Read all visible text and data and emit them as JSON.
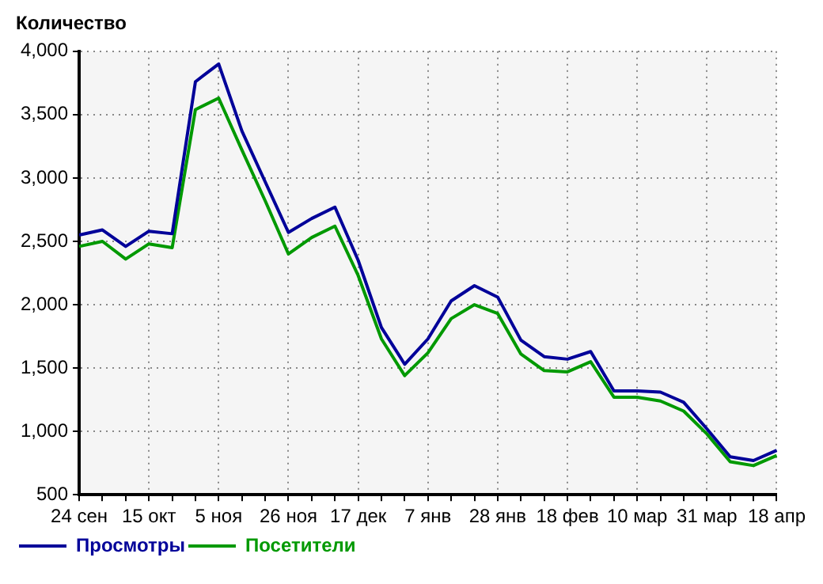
{
  "chart_data": {
    "type": "line",
    "ylabel": "Количество",
    "categories": [
      "24 сен",
      null,
      null,
      "15 окт",
      null,
      null,
      "5 ноя",
      null,
      null,
      "26 ноя",
      null,
      null,
      "17 дек",
      null,
      null,
      "7 янв",
      null,
      null,
      "28 янв",
      null,
      null,
      "18 фев",
      null,
      null,
      "10 мар",
      null,
      null,
      "31 мар",
      null,
      null,
      "18 апр"
    ],
    "series": [
      {
        "name": "Просмотры",
        "color": "#000099",
        "values": [
          2550,
          2590,
          2460,
          2580,
          2560,
          3760,
          3900,
          3370,
          2970,
          2570,
          2680,
          2770,
          2350,
          1820,
          1530,
          1730,
          2030,
          2150,
          2060,
          1720,
          1590,
          1570,
          1630,
          1320,
          1320,
          1310,
          1230,
          1020,
          800,
          770,
          850
        ]
      },
      {
        "name": "Посетители",
        "color": "#009900",
        "values": [
          2460,
          2500,
          2360,
          2480,
          2450,
          3540,
          3630,
          3220,
          2820,
          2400,
          2530,
          2620,
          2230,
          1730,
          1440,
          1620,
          1890,
          2000,
          1930,
          1610,
          1480,
          1470,
          1550,
          1270,
          1270,
          1240,
          1160,
          980,
          760,
          730,
          810
        ]
      }
    ],
    "ylim": [
      500,
      4000
    ],
    "yticks": [
      {
        "value": 500,
        "label": "500"
      },
      {
        "value": 1000,
        "label": "1,000"
      },
      {
        "value": 1500,
        "label": "1,500"
      },
      {
        "value": 2000,
        "label": "2,000"
      },
      {
        "value": 2500,
        "label": "2,500"
      },
      {
        "value": 3000,
        "label": "3,000"
      },
      {
        "value": 3500,
        "label": "3,500"
      },
      {
        "value": 4000,
        "label": "4,000"
      }
    ],
    "grid": true,
    "legend": "bottom left",
    "marker": "none",
    "line_style": "solid"
  }
}
